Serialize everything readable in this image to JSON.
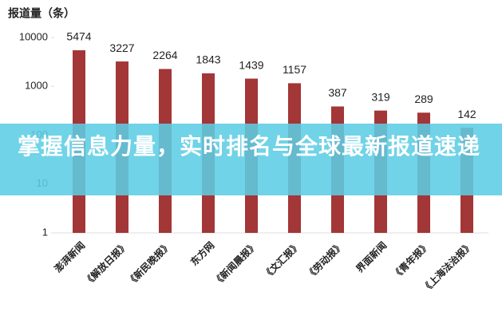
{
  "chart_data": {
    "type": "bar",
    "title": "报道量（条）",
    "categories": [
      "澎湃新闻",
      "《解放日报》",
      "《新民晚报》",
      "东方网",
      "《新闻晨报》",
      "《文汇报》",
      "《劳动报》",
      "界面新闻",
      "《青年报》",
      "《上海法治报》"
    ],
    "values": [
      5474,
      3227,
      2264,
      1843,
      1439,
      1157,
      387,
      319,
      289,
      142
    ],
    "color": "#a33636",
    "log_scale": true,
    "ylim": [
      1,
      10000
    ],
    "yticks": [
      1,
      10,
      100,
      1000,
      10000
    ]
  },
  "banner": "掌握信息力量，实时排名与全球最新报道速递"
}
